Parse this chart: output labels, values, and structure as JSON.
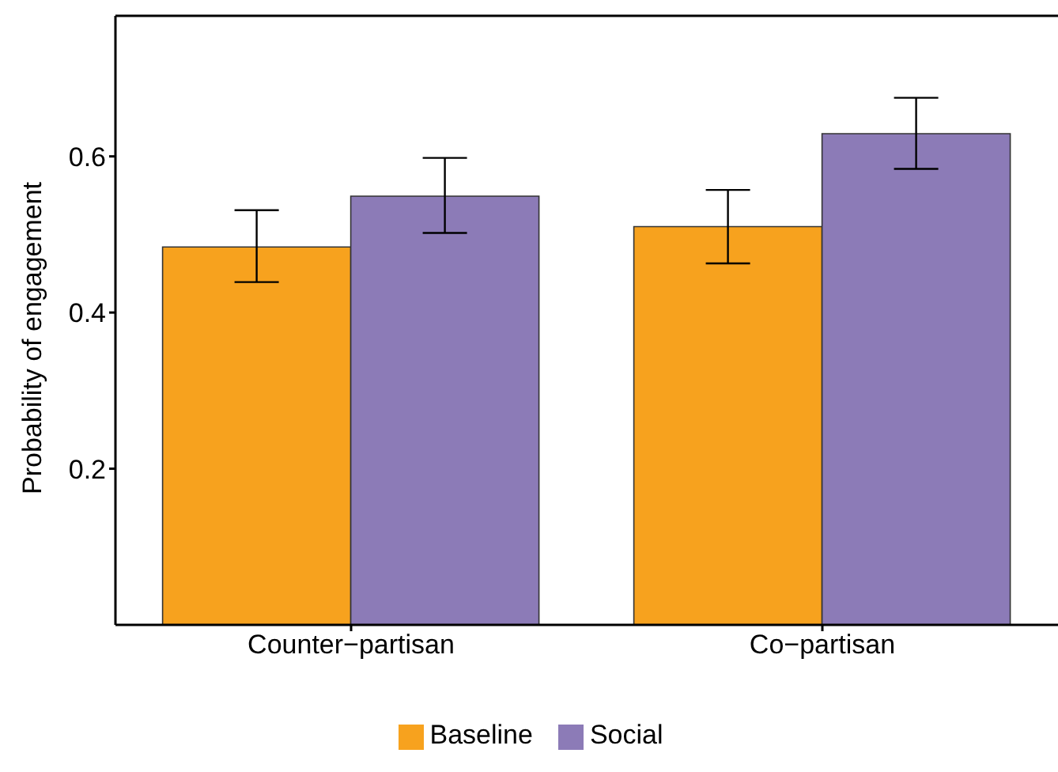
{
  "chart_data": {
    "type": "bar",
    "ylabel": "Probability of engagement",
    "categories": [
      "Counter−partisan",
      "Co−partisan"
    ],
    "series": [
      {
        "name": "Baseline",
        "color": "#f7a21e",
        "values": [
          0.484,
          0.51
        ],
        "errors": [
          [
            0.439,
            0.531
          ],
          [
            0.463,
            0.557
          ]
        ]
      },
      {
        "name": "Social",
        "color": "#8c7bb7",
        "values": [
          0.549,
          0.629
        ],
        "errors": [
          [
            0.502,
            0.598
          ],
          [
            0.584,
            0.675
          ]
        ]
      }
    ],
    "ylim": [
      0,
      0.78
    ],
    "yticks": [
      0.2,
      0.4,
      0.6
    ],
    "legend": "bottom"
  }
}
